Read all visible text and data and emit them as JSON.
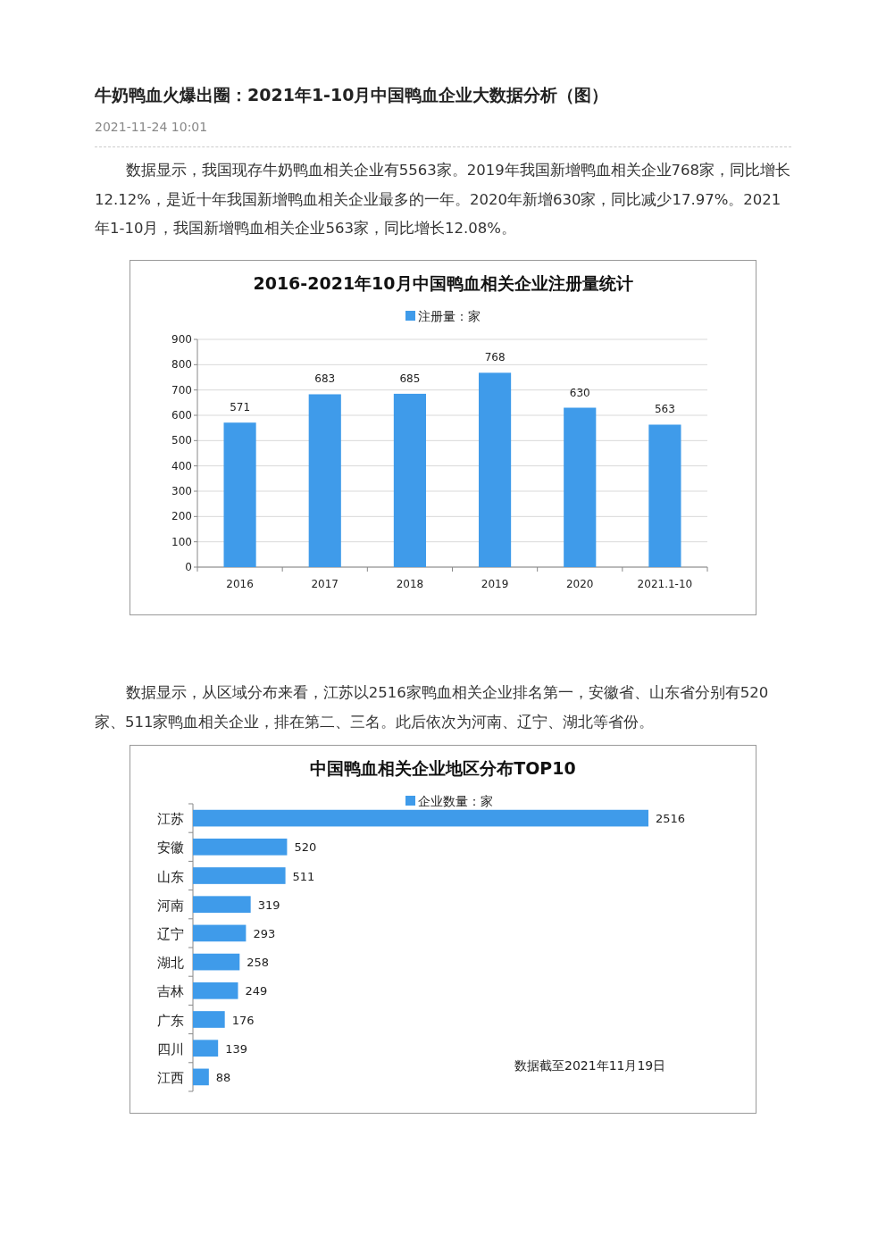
{
  "chart_data": [
    {
      "type": "other",
      "title": "牛奶鸭血火爆出圈：2021年1-10月中国鸭血企业大数据分析（图）",
      "subtitle": "2021-11-24 10:01",
      "annotations": [
        "数据显示，我国现存牛奶鸭血相关企业有5563家。2019年我国新增鸭血相关企业768家，同比增长12.12%，是近十年我国新增鸭血相关企业最多的一年。2020年新增630家，同比减少17.97%。2021年1-10月，我国新增鸭血相关企业563家，同比增长12.08%。"
      ]
    },
    {
      "type": "bar",
      "title": "2016-2021年10月中国鸭血相关企业注册量统计",
      "categories": [
        "2016",
        "2017",
        "2018",
        "2019",
        "2020",
        "2021.1-10"
      ],
      "series": [
        {
          "name": "注册量：家",
          "color": "#3f9bea",
          "values": [
            571,
            683,
            685,
            768,
            630,
            563
          ]
        }
      ],
      "ylim": [
        0,
        900
      ],
      "yticks": [
        0,
        100,
        200,
        300,
        400,
        500,
        600,
        700,
        800,
        900
      ],
      "grid": "y",
      "legend": "top",
      "data_labels": true
    },
    {
      "type": "other",
      "annotations": [
        "数据显示，从区域分布来看，江苏以2516家鸭血相关企业排名第一，安徽省、山东省分别有520家、511家鸭血相关企业，排在第二、三名。此后依次为河南、辽宁、湖北等省份。"
      ]
    },
    {
      "type": "bar",
      "orientation": "horizontal",
      "title": "中国鸭血相关企业地区分布TOP10",
      "categories": [
        "江苏",
        "安徽",
        "山东",
        "河南",
        "辽宁",
        "湖北",
        "吉林",
        "广东",
        "四川",
        "江西"
      ],
      "series": [
        {
          "name": "企业数量：家",
          "color": "#3f9bea",
          "values": [
            2516,
            520,
            511,
            319,
            293,
            258,
            249,
            176,
            139,
            88
          ]
        }
      ],
      "legend": "top",
      "data_labels": true,
      "annotations": [
        "数据截至2021年11月19日"
      ]
    }
  ]
}
